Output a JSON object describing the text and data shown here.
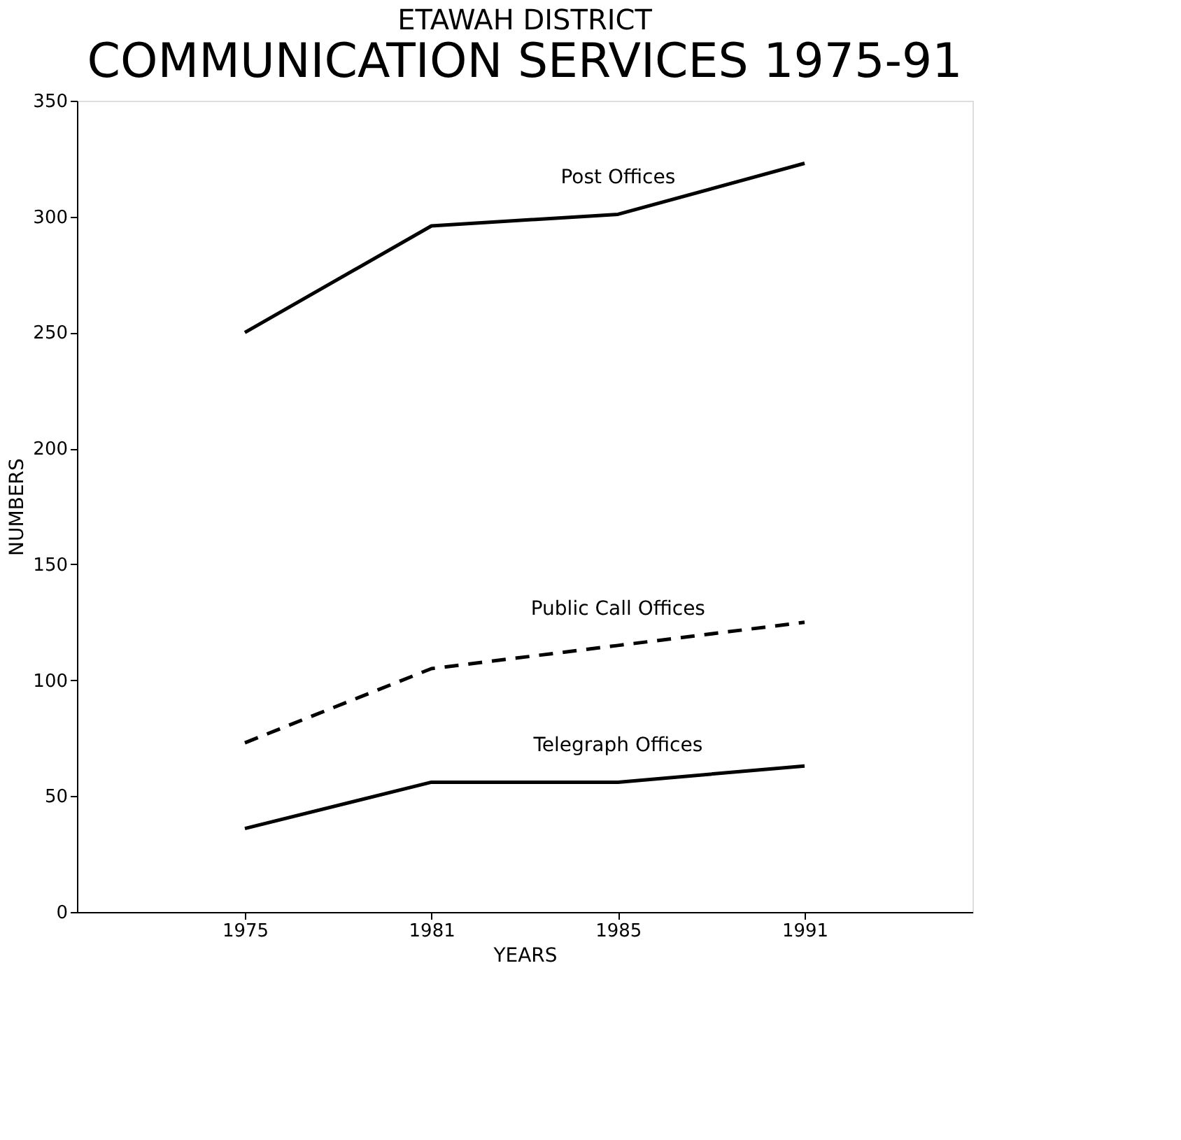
{
  "chart_data": {
    "type": "line",
    "title": "ETAWAH DISTRICT",
    "subtitle": "COMMUNICATION SERVICES 1975-91",
    "xlabel": "YEARS",
    "ylabel": "NUMBERS",
    "categories": [
      "1975",
      "1981",
      "1985",
      "1991"
    ],
    "series": [
      {
        "name": "Post Offices",
        "color": "#000000",
        "values": [
          250,
          296,
          301,
          323
        ],
        "line_style": "solid"
      },
      {
        "name": "Public Call Offices",
        "color": "#000000",
        "values": [
          73,
          105,
          115,
          125
        ],
        "line_style": "dashed"
      },
      {
        "name": "Telegraph Offices",
        "color": "#000000",
        "values": [
          36,
          56,
          56,
          63
        ],
        "line_style": "solid"
      }
    ],
    "ylim": [
      0,
      350
    ],
    "yticks": [
      0,
      50,
      100,
      150,
      200,
      250,
      300,
      350
    ],
    "grid": false,
    "marker": "none"
  }
}
